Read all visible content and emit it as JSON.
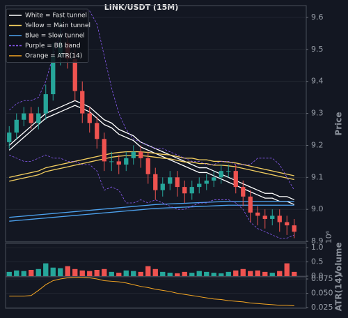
{
  "chart_data": [
    {
      "type": "candlestick",
      "title": "LINK/USDT (15M)",
      "ylabel": "Price",
      "up_color": "#26a69a",
      "down_color": "#ef5350",
      "grid": true,
      "legend": "upper left",
      "ylim": [
        8.898,
        9.637
      ],
      "yticks": [
        8.9,
        {
          "value": 9.0,
          "label": "9.0"
        },
        9.1,
        9.2,
        9.3,
        9.4,
        9.5,
        9.6
      ],
      "open": [
        9.21,
        9.24,
        9.28,
        9.3,
        9.27,
        9.3,
        9.36,
        9.48,
        9.52,
        9.47,
        9.37,
        9.3,
        9.27,
        9.22,
        9.15,
        9.15,
        9.14,
        9.16,
        9.18,
        9.16,
        9.11,
        9.06,
        9.08,
        9.1,
        9.07,
        9.05,
        9.07,
        9.08,
        9.09,
        9.1,
        9.12,
        9.12,
        9.07,
        9.04,
        8.99,
        8.98,
        8.97,
        8.98,
        8.96,
        8.95
      ],
      "high": [
        9.26,
        9.3,
        9.32,
        9.32,
        9.32,
        9.39,
        9.52,
        9.6,
        9.55,
        9.5,
        9.4,
        9.32,
        9.29,
        9.24,
        9.18,
        9.17,
        9.18,
        9.2,
        9.2,
        9.18,
        9.13,
        9.1,
        9.12,
        9.12,
        9.09,
        9.09,
        9.1,
        9.11,
        9.12,
        9.14,
        9.14,
        9.14,
        9.09,
        9.06,
        9.01,
        9.0,
        9.0,
        9.0,
        8.98,
        8.97
      ],
      "low": [
        9.19,
        9.22,
        9.26,
        9.25,
        9.25,
        9.28,
        9.34,
        9.45,
        9.44,
        9.34,
        9.27,
        9.24,
        9.19,
        9.12,
        9.12,
        9.11,
        9.12,
        9.14,
        9.13,
        9.08,
        9.03,
        9.04,
        9.06,
        9.04,
        9.02,
        9.03,
        9.05,
        9.06,
        9.07,
        9.08,
        9.1,
        9.05,
        9.01,
        8.96,
        8.95,
        8.94,
        8.95,
        8.93,
        8.92,
        8.91
      ],
      "close": [
        9.24,
        9.28,
        9.3,
        9.27,
        9.3,
        9.36,
        9.48,
        9.52,
        9.47,
        9.37,
        9.3,
        9.27,
        9.22,
        9.15,
        9.15,
        9.14,
        9.16,
        9.18,
        9.16,
        9.11,
        9.06,
        9.08,
        9.1,
        9.07,
        9.05,
        9.07,
        9.08,
        9.09,
        9.1,
        9.12,
        9.12,
        9.07,
        9.04,
        8.99,
        8.98,
        8.97,
        8.98,
        8.96,
        8.95,
        8.93
      ],
      "series": [
        {
          "name": "White = Fast tunnel",
          "color": "#ffffff",
          "dashed": false,
          "upper": [
            9.2,
            9.22,
            9.24,
            9.26,
            9.28,
            9.3,
            9.31,
            9.32,
            9.33,
            9.34,
            9.33,
            9.32,
            9.3,
            9.28,
            9.27,
            9.25,
            9.24,
            9.23,
            9.21,
            9.2,
            9.19,
            9.18,
            9.17,
            9.16,
            9.15,
            9.14,
            9.13,
            9.13,
            9.12,
            9.11,
            9.1,
            9.09,
            9.08,
            9.07,
            9.06,
            9.05,
            9.05,
            9.04,
            9.04,
            9.03
          ],
          "lower": [
            9.185,
            9.205,
            9.225,
            9.245,
            9.265,
            9.285,
            9.295,
            9.305,
            9.315,
            9.325,
            9.315,
            9.305,
            9.285,
            9.265,
            9.255,
            9.235,
            9.225,
            9.215,
            9.195,
            9.185,
            9.175,
            9.165,
            9.155,
            9.145,
            9.135,
            9.125,
            9.115,
            9.115,
            9.105,
            9.095,
            9.085,
            9.075,
            9.065,
            9.055,
            9.045,
            9.035,
            9.035,
            9.025,
            9.025,
            9.015
          ]
        },
        {
          "name": "Yellow = Main tunnel",
          "color": "#f5d060",
          "dashed": false,
          "upper": [
            9.1,
            9.105,
            9.11,
            9.115,
            9.12,
            9.13,
            9.135,
            9.14,
            9.145,
            9.15,
            9.155,
            9.16,
            9.165,
            9.17,
            9.175,
            9.178,
            9.18,
            9.18,
            9.18,
            9.178,
            9.175,
            9.172,
            9.17,
            9.165,
            9.16,
            9.16,
            9.155,
            9.155,
            9.15,
            9.15,
            9.148,
            9.145,
            9.14,
            9.135,
            9.13,
            9.125,
            9.12,
            9.115,
            9.11,
            9.105
          ],
          "lower": [
            9.088,
            9.093,
            9.098,
            9.103,
            9.108,
            9.118,
            9.123,
            9.128,
            9.133,
            9.138,
            9.143,
            9.148,
            9.153,
            9.158,
            9.163,
            9.166,
            9.168,
            9.168,
            9.168,
            9.166,
            9.163,
            9.16,
            9.158,
            9.153,
            9.148,
            9.148,
            9.143,
            9.143,
            9.138,
            9.138,
            9.136,
            9.133,
            9.128,
            9.123,
            9.118,
            9.113,
            9.108,
            9.103,
            9.098,
            9.093
          ]
        },
        {
          "name": "Blue = Slow tunnel",
          "color": "#4da3f0",
          "dashed": false,
          "upper": [
            8.975,
            8.977,
            8.979,
            8.981,
            8.983,
            8.985,
            8.987,
            8.989,
            8.991,
            8.993,
            8.995,
            8.997,
            8.999,
            9.001,
            9.003,
            9.005,
            9.007,
            9.009,
            9.011,
            9.013,
            9.015,
            9.016,
            9.017,
            9.018,
            9.019,
            9.02,
            9.021,
            9.022,
            9.023,
            9.024,
            9.025,
            9.025,
            9.025,
            9.025,
            9.025,
            9.025,
            9.025,
            9.025,
            9.025,
            9.025
          ],
          "lower": [
            8.963,
            8.965,
            8.967,
            8.969,
            8.971,
            8.973,
            8.975,
            8.977,
            8.979,
            8.981,
            8.983,
            8.985,
            8.987,
            8.989,
            8.991,
            8.993,
            8.995,
            8.997,
            8.999,
            9.001,
            9.003,
            9.004,
            9.005,
            9.006,
            9.007,
            9.008,
            9.009,
            9.01,
            9.011,
            9.012,
            9.013,
            9.013,
            9.013,
            9.013,
            9.013,
            9.013,
            9.013,
            9.013,
            9.013,
            9.013
          ]
        },
        {
          "name": "Purple = BB band",
          "color": "#8b5cf6",
          "dashed": true,
          "upper": [
            9.31,
            9.33,
            9.34,
            9.34,
            9.35,
            9.4,
            9.48,
            9.55,
            9.58,
            9.6,
            9.62,
            9.62,
            9.58,
            9.48,
            9.38,
            9.3,
            9.25,
            9.22,
            9.21,
            9.2,
            9.19,
            9.19,
            9.18,
            9.17,
            9.16,
            9.15,
            9.15,
            9.14,
            9.14,
            9.15,
            9.15,
            9.14,
            9.14,
            9.14,
            9.16,
            9.16,
            9.16,
            9.14,
            9.1,
            9.06
          ],
          "lower": [
            9.17,
            9.16,
            9.15,
            9.15,
            9.16,
            9.17,
            9.16,
            9.16,
            9.15,
            9.15,
            9.14,
            9.14,
            9.12,
            9.06,
            9.07,
            9.06,
            9.02,
            9.02,
            9.03,
            9.02,
            9.03,
            9.02,
            9.01,
            9.0,
            9.0,
            9.01,
            9.02,
            9.02,
            9.03,
            9.03,
            9.03,
            9.02,
            9.0,
            8.96,
            8.94,
            8.93,
            8.92,
            8.91,
            8.91,
            8.92
          ]
        }
      ]
    },
    {
      "type": "bar",
      "ylabel": "Volume",
      "offset_label": "10⁶",
      "grid": true,
      "ylim": [
        0,
        1.15
      ],
      "yticks": [
        {
          "value": 0,
          "label": "0.0"
        },
        0.5,
        {
          "value": 1,
          "label": "1.0"
        }
      ],
      "values": [
        0.15,
        0.2,
        0.18,
        0.22,
        0.25,
        0.45,
        0.3,
        0.28,
        0.35,
        0.25,
        0.2,
        0.18,
        0.22,
        0.25,
        0.15,
        0.12,
        0.2,
        0.18,
        0.15,
        0.35,
        0.25,
        0.15,
        0.12,
        0.1,
        0.15,
        0.12,
        0.18,
        0.15,
        0.12,
        0.1,
        0.15,
        0.2,
        0.25,
        0.18,
        0.2,
        0.15,
        0.12,
        0.18,
        0.45,
        0.15
      ]
    },
    {
      "type": "line",
      "ylabel": "ATR(14)",
      "grid": true,
      "ylim": [
        0.0238,
        0.0787
      ],
      "yticks": [
        0.025,
        {
          "value": 0.05,
          "label": "0.050"
        },
        0.075
      ],
      "series": [
        {
          "name": "Orange = ATR(14)",
          "color": "#f5a623",
          "values": [
            0.045,
            0.045,
            0.045,
            0.046,
            0.055,
            0.065,
            0.072,
            0.075,
            0.077,
            0.078,
            0.078,
            0.077,
            0.075,
            0.072,
            0.071,
            0.07,
            0.068,
            0.065,
            0.062,
            0.06,
            0.057,
            0.055,
            0.053,
            0.05,
            0.048,
            0.046,
            0.044,
            0.042,
            0.04,
            0.039,
            0.037,
            0.036,
            0.035,
            0.033,
            0.032,
            0.031,
            0.03,
            0.029,
            0.029,
            0.028
          ]
        }
      ]
    }
  ]
}
